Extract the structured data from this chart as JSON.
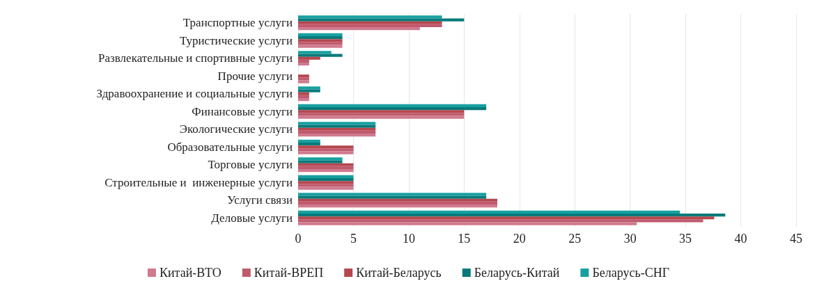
{
  "chart_data": {
    "type": "bar",
    "orientation": "horizontal",
    "categories": [
      "Транспортные услуги",
      "Туристические услуги",
      "Развлекательные и спортивные услуги",
      "Прочие услуги",
      "Здравоохранение и социальные услуги",
      "Финансовые услуги",
      "Экологические услуги",
      "Образовательные услуги",
      "Торговые услуги",
      "Строительные и  инженерные услуги",
      "Услуги связи",
      "Деловые услуги"
    ],
    "series": [
      {
        "name": "Китай-ВТО",
        "color": "#d07a8e",
        "values": [
          11,
          4,
          1,
          1,
          1,
          15,
          7,
          5,
          5,
          5,
          18,
          30.6
        ]
      },
      {
        "name": "Китай-ВРЕП",
        "color": "#c05a6e",
        "values": [
          13,
          4,
          1,
          1,
          1,
          15,
          7,
          5,
          5,
          5,
          18,
          36.6
        ]
      },
      {
        "name": "Китай-Беларусь",
        "color": "#b5474e",
        "values": [
          13,
          4,
          2,
          1,
          1,
          15,
          7,
          5,
          5,
          5,
          18,
          37.6
        ]
      },
      {
        "name": "Беларусь-Китай",
        "color": "#087a7b",
        "values": [
          15,
          4,
          4,
          null,
          2,
          17,
          7,
          2,
          4,
          5,
          17,
          38.6
        ]
      },
      {
        "name": "Беларусь-СНГ",
        "color": "#18a0a0",
        "values": [
          13,
          4,
          3,
          null,
          2,
          17,
          7,
          2,
          4,
          5,
          17,
          34.5
        ]
      }
    ],
    "xlim": [
      0,
      45
    ],
    "xticks": [
      0,
      5,
      10,
      15,
      20,
      25,
      30,
      35,
      40,
      45
    ],
    "grid": "x",
    "legend": "bottom"
  }
}
